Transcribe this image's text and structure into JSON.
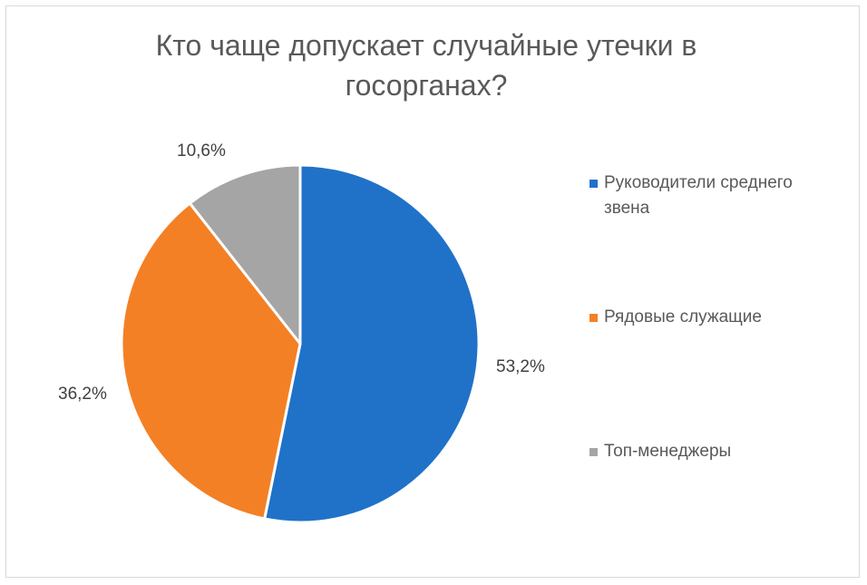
{
  "chart_data": {
    "type": "pie",
    "title": "Кто чаще допускает случайные утечки в госорганах?",
    "categories": [
      "Руководители среднего звена",
      "Рядовые служащие",
      "Топ-менеджеры"
    ],
    "values": [
      53.2,
      36.2,
      10.6
    ],
    "data_labels": [
      "53,2%",
      "36,2%",
      "10,6%"
    ],
    "colors": [
      "#1f72c8",
      "#f48025",
      "#a5a5a5"
    ],
    "legend_position": "right",
    "start_angle_deg": 0,
    "direction": "clockwise"
  }
}
